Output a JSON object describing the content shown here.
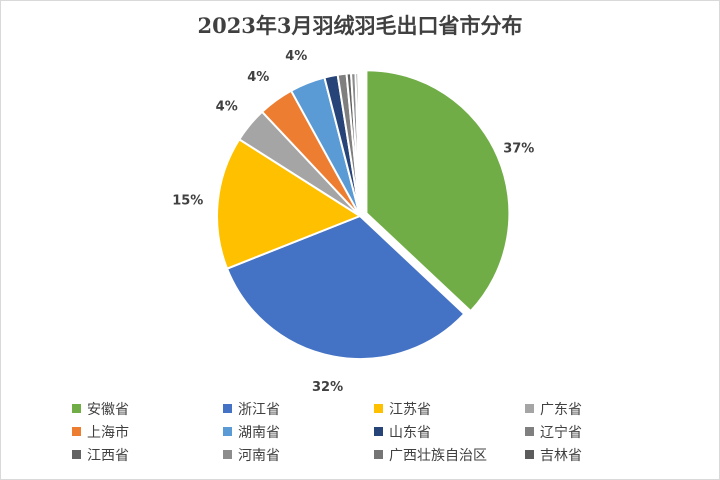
{
  "chart_data": {
    "type": "pie",
    "title": "2023年3月羽绒羽毛出口省市分布",
    "legend_position": "bottom",
    "slices": [
      {
        "name": "安徽省",
        "value": 37,
        "label": "37%",
        "color": "#70ad47",
        "exploded": true
      },
      {
        "name": "浙江省",
        "value": 32,
        "label": "32%",
        "color": "#4472c4"
      },
      {
        "name": "江苏省",
        "value": 15,
        "label": "15%",
        "color": "#ffc000"
      },
      {
        "name": "广东省",
        "value": 4,
        "label": "4%",
        "color": "#a5a5a5"
      },
      {
        "name": "上海市",
        "value": 4,
        "label": "4%",
        "color": "#ed7d31"
      },
      {
        "name": "湖南省",
        "value": 4,
        "label": "4%",
        "color": "#5b9bd5"
      },
      {
        "name": "山东省",
        "value": 1.5,
        "label": "",
        "color": "#264478"
      },
      {
        "name": "辽宁省",
        "value": 1,
        "label": "",
        "color": "#7f7f7f"
      },
      {
        "name": "江西省",
        "value": 0.5,
        "label": "",
        "color": "#636363"
      },
      {
        "name": "河南省",
        "value": 0.5,
        "label": "",
        "color": "#8c8c8c"
      },
      {
        "name": "广西壮族自治区",
        "value": 0.3,
        "label": "",
        "color": "#757575"
      },
      {
        "name": "吉林省",
        "value": 0.2,
        "label": "",
        "color": "#5c5c5c"
      }
    ]
  }
}
